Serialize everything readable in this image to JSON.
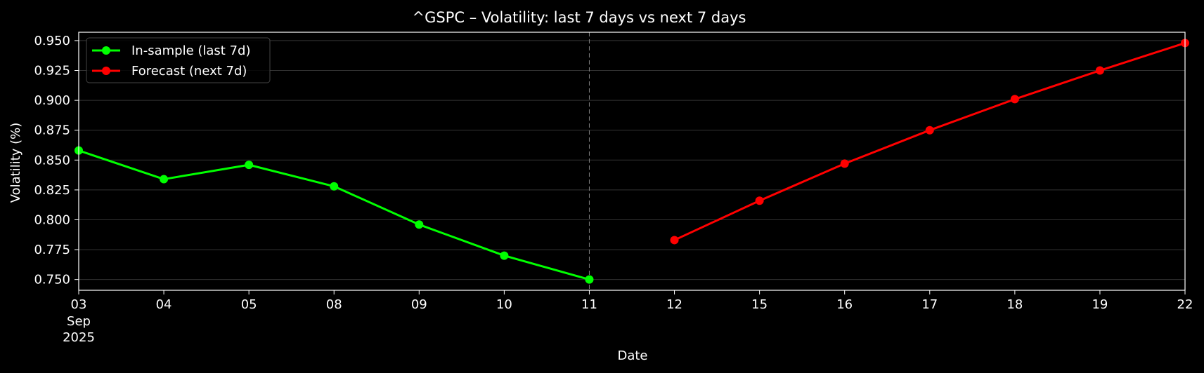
{
  "chart_data": {
    "type": "line",
    "title": "^GSPC – Volatility: last 7 days vs next 7 days",
    "xlabel": "Date",
    "ylabel": "Volatility (%)",
    "ylim": [
      0.741,
      0.957
    ],
    "x_ticks": [
      "03",
      "04",
      "05",
      "08",
      "09",
      "10",
      "11",
      "12",
      "15",
      "16",
      "17",
      "18",
      "19",
      "22"
    ],
    "x_tick_sublabels": [
      "Sep",
      "2025"
    ],
    "y_ticks": [
      "0.750",
      "0.775",
      "0.800",
      "0.825",
      "0.850",
      "0.875",
      "0.900",
      "0.925",
      "0.950"
    ],
    "grid": "horizontal",
    "divider_at": "11",
    "legend_position": "upper left",
    "series": [
      {
        "name": "In-sample (last 7d)",
        "color": "#00ff00",
        "x": [
          "2025-09-03",
          "2025-09-04",
          "2025-09-05",
          "2025-09-08",
          "2025-09-09",
          "2025-09-10",
          "2025-09-11"
        ],
        "values": [
          0.858,
          0.834,
          0.846,
          0.828,
          0.796,
          0.77,
          0.75
        ]
      },
      {
        "name": "Forecast (next 7d)",
        "color": "#ff0000",
        "x": [
          "2025-09-12",
          "2025-09-15",
          "2025-09-16",
          "2025-09-17",
          "2025-09-18",
          "2025-09-19",
          "2025-09-22"
        ],
        "values": [
          0.783,
          0.816,
          0.847,
          0.875,
          0.901,
          0.925,
          0.948
        ]
      }
    ]
  }
}
